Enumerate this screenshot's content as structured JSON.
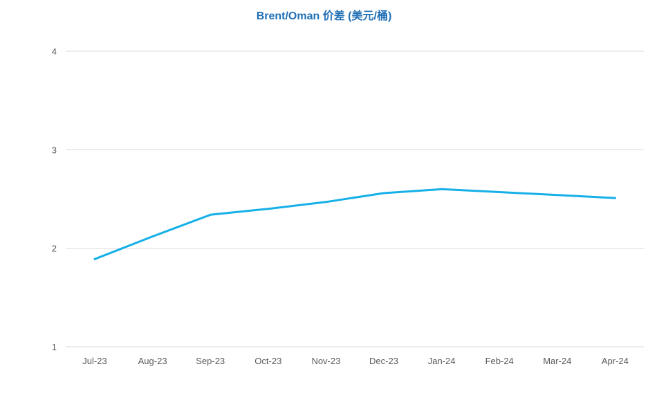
{
  "chart_data": {
    "type": "line",
    "title": "Brent/Oman 价差 (美元/桶)",
    "xlabel": "",
    "ylabel": "",
    "categories": [
      "Jul-23",
      "Aug-23",
      "Sep-23",
      "Oct-23",
      "Nov-23",
      "Dec-23",
      "Jan-24",
      "Feb-24",
      "Mar-24",
      "Apr-24"
    ],
    "series": [
      {
        "values": [
          1.89,
          2.12,
          2.34,
          2.4,
          2.47,
          2.56,
          2.6,
          2.57,
          2.54,
          2.51
        ],
        "color": "#16B0E8"
      }
    ],
    "ylim": [
      1,
      4
    ],
    "yticks": [
      1,
      2,
      3,
      4
    ],
    "grid": true,
    "legend": "none",
    "colors": {
      "title": "#1F6FB5",
      "grid": "#D9D9D9",
      "tick_text": "#595959"
    }
  }
}
